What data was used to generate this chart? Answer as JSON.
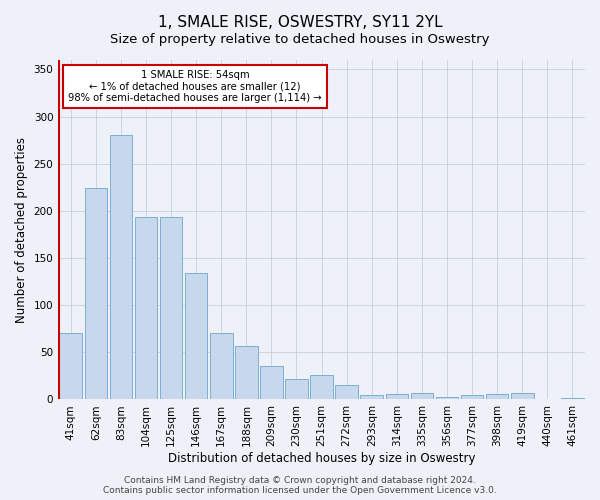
{
  "title": "1, SMALE RISE, OSWESTRY, SY11 2YL",
  "subtitle": "Size of property relative to detached houses in Oswestry",
  "xlabel": "Distribution of detached houses by size in Oswestry",
  "ylabel": "Number of detached properties",
  "categories": [
    "41sqm",
    "62sqm",
    "83sqm",
    "104sqm",
    "125sqm",
    "146sqm",
    "167sqm",
    "188sqm",
    "209sqm",
    "230sqm",
    "251sqm",
    "272sqm",
    "293sqm",
    "314sqm",
    "335sqm",
    "356sqm",
    "377sqm",
    "398sqm",
    "419sqm",
    "440sqm",
    "461sqm"
  ],
  "values": [
    70,
    224,
    280,
    193,
    193,
    134,
    70,
    57,
    35,
    22,
    26,
    15,
    5,
    6,
    7,
    3,
    5,
    6,
    7,
    1,
    2
  ],
  "bar_color": "#c8d8ec",
  "bar_edge_color": "#7bafd4",
  "marker_label_line1": "1 SMALE RISE: 54sqm",
  "marker_label_line2": "← 1% of detached houses are smaller (12)",
  "marker_label_line3": "98% of semi-detached houses are larger (1,114) →",
  "annotation_box_color": "#cc0000",
  "annotation_fill": "#ffffff",
  "marker_line_color": "#cc0000",
  "ylim": [
    0,
    360
  ],
  "yticks": [
    0,
    50,
    100,
    150,
    200,
    250,
    300,
    350
  ],
  "footer_line1": "Contains HM Land Registry data © Crown copyright and database right 2024.",
  "footer_line2": "Contains public sector information licensed under the Open Government Licence v3.0.",
  "bg_color": "#eef2f8",
  "grid_color": "#c8d0dc",
  "title_fontsize": 11,
  "subtitle_fontsize": 9.5,
  "axis_label_fontsize": 8.5,
  "tick_fontsize": 7.5,
  "footer_fontsize": 6.5
}
